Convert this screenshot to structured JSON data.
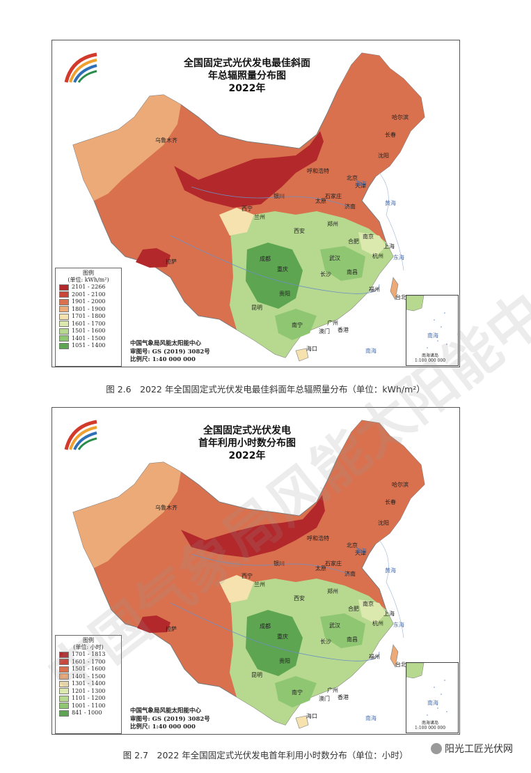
{
  "maps": [
    {
      "title_lines": [
        "全国固定式光伏发电最佳斜面",
        "年总辐照量分布图",
        "2022年"
      ],
      "legend_title": "图例",
      "legend_unit": "(单位: kWh/m²)",
      "legend": [
        {
          "label": "2101 - 2266",
          "color": "#b3282b"
        },
        {
          "label": "2001 - 2100",
          "color": "#c9473a"
        },
        {
          "label": "1901 - 2000",
          "color": "#d9714f"
        },
        {
          "label": "1801 - 1900",
          "color": "#ebaa78"
        },
        {
          "label": "1701 - 1800",
          "color": "#f5e2ae"
        },
        {
          "label": "1601 - 1700",
          "color": "#dbe8ae"
        },
        {
          "label": "1501 - 1600",
          "color": "#b6d98f"
        },
        {
          "label": "1401 - 1500",
          "color": "#8fc672"
        },
        {
          "label": "1051 - 1400",
          "color": "#5ea552"
        }
      ],
      "credit": [
        "中国气象局风能太阳能中心",
        "审图号: GS (2019) 3082号",
        "比例尺: 1:40 000 000"
      ],
      "caption": "图 2.6　2022 年全国固定式光伏发电最佳斜面年总辐照量分布（单位：kWh/m²）"
    },
    {
      "title_lines": [
        "全国固定式光伏发电",
        "首年利用小时数分布图",
        "2022年"
      ],
      "legend_title": "图例",
      "legend_unit": "(单位: 小时)",
      "legend": [
        {
          "label": "1701 - 1813",
          "color": "#b3282b"
        },
        {
          "label": "1601 - 1700",
          "color": "#c9473a"
        },
        {
          "label": "1501 - 1600",
          "color": "#d9714f"
        },
        {
          "label": "1401 - 1500",
          "color": "#ebaa78"
        },
        {
          "label": "1301 - 1400",
          "color": "#f5e2ae"
        },
        {
          "label": "1201 - 1300",
          "color": "#dbe8ae"
        },
        {
          "label": "1101 - 1200",
          "color": "#b6d98f"
        },
        {
          "label": "1001 - 1100",
          "color": "#8fc672"
        },
        {
          "label": "841 - 1000",
          "color": "#5ea552"
        }
      ],
      "credit": [
        "中国气象局风能太阳能中心",
        "审图号: GS (2019) 3082号",
        "比例尺: 1:40 000 000"
      ],
      "caption": "图 2.7　2022 年全国固定式光伏发电首年利用小时数分布（单位：小时）"
    }
  ],
  "cities": [
    {
      "name": "哈尔滨"
    },
    {
      "name": "长春"
    },
    {
      "name": "沈阳"
    },
    {
      "name": "北京"
    },
    {
      "name": "呼和浩特"
    },
    {
      "name": "天津"
    },
    {
      "name": "石家庄"
    },
    {
      "name": "太原"
    },
    {
      "name": "济南"
    },
    {
      "name": "银川"
    },
    {
      "name": "兰州"
    },
    {
      "name": "西宁"
    },
    {
      "name": "西安"
    },
    {
      "name": "郑州"
    },
    {
      "name": "南京"
    },
    {
      "name": "合肥"
    },
    {
      "name": "上海"
    },
    {
      "name": "杭州"
    },
    {
      "name": "武汉"
    },
    {
      "name": "成都"
    },
    {
      "name": "重庆"
    },
    {
      "name": "长沙"
    },
    {
      "name": "南昌"
    },
    {
      "name": "福州"
    },
    {
      "name": "贵阳"
    },
    {
      "name": "昆明"
    },
    {
      "name": "南宁"
    },
    {
      "name": "广州"
    },
    {
      "name": "澳门"
    },
    {
      "name": "香港"
    },
    {
      "name": "海口"
    },
    {
      "name": "台北"
    },
    {
      "name": "拉萨"
    },
    {
      "name": "乌鲁木齐"
    }
  ],
  "seas": [
    "渤海",
    "黄海",
    "东海",
    "南海"
  ],
  "inset": {
    "sea": "南海",
    "label": "南海诸岛",
    "scale": "1:100 000 000"
  },
  "watermark": "中国气象局风能太阳能中心",
  "badge": "阳光工匠光伏网"
}
